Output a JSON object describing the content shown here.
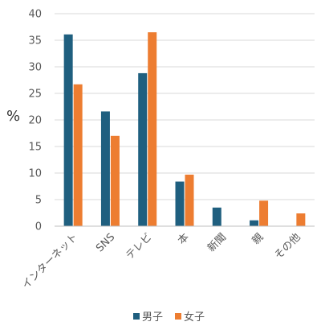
{
  "chart_data": {
    "type": "bar",
    "title": "",
    "xlabel": "",
    "ylabel": "%",
    "ylim": [
      0,
      40
    ],
    "yticks": [
      0,
      5,
      10,
      15,
      20,
      25,
      30,
      35,
      40
    ],
    "grid": true,
    "legend_position": "bottom",
    "categories": [
      "インターネット",
      "SNS",
      "テレビ",
      "本",
      "新聞",
      "親",
      "その他"
    ],
    "series": [
      {
        "name": "男子",
        "color": "#1f5f7f",
        "values": [
          36.1,
          21.6,
          28.8,
          8.4,
          3.5,
          1.1,
          0
        ]
      },
      {
        "name": "女子",
        "color": "#ed7d31",
        "values": [
          26.7,
          17.0,
          36.5,
          9.7,
          0,
          4.8,
          2.4
        ]
      }
    ]
  }
}
